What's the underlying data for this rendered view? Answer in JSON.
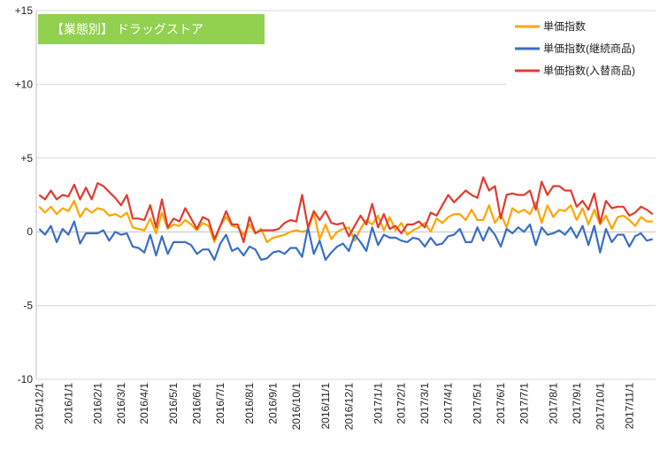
{
  "chart_data": {
    "type": "line",
    "title": "【業態別】 ドラッグストア",
    "title_box_color": "#92d050",
    "ylim": [
      -10,
      15
    ],
    "yticks": [
      {
        "value": 15,
        "label": "+15"
      },
      {
        "value": 10,
        "label": "+10"
      },
      {
        "value": 5,
        "label": "+5"
      },
      {
        "value": 0,
        "label": "0"
      },
      {
        "value": -5,
        "label": "-5"
      },
      {
        "value": -10,
        "label": "-10"
      }
    ],
    "grid": "horizontal",
    "legend_position": "top-right",
    "x_ticks": [
      {
        "index": 0,
        "label": "2015/12/1"
      },
      {
        "index": 5,
        "label": "2016/1/1"
      },
      {
        "index": 10,
        "label": "2016/2/1"
      },
      {
        "index": 14,
        "label": "2016/3/1"
      },
      {
        "index": 18,
        "label": "2016/4/1"
      },
      {
        "index": 23,
        "label": "2016/5/1"
      },
      {
        "index": 27,
        "label": "2016/6/1"
      },
      {
        "index": 31,
        "label": "2016/7/1"
      },
      {
        "index": 36,
        "label": "2016/8/1"
      },
      {
        "index": 40,
        "label": "2016/9/1"
      },
      {
        "index": 44,
        "label": "2016/10/1"
      },
      {
        "index": 49,
        "label": "2016/11/1"
      },
      {
        "index": 53,
        "label": "2016/12/1"
      },
      {
        "index": 58,
        "label": "2017/1/1"
      },
      {
        "index": 62,
        "label": "2017/2/1"
      },
      {
        "index": 66,
        "label": "2017/3/1"
      },
      {
        "index": 70,
        "label": "2017/4/1"
      },
      {
        "index": 75,
        "label": "2017/5/1"
      },
      {
        "index": 79,
        "label": "2017/6/1"
      },
      {
        "index": 83,
        "label": "2017/7/1"
      },
      {
        "index": 88,
        "label": "2017/8/1"
      },
      {
        "index": 92,
        "label": "2017/9/1"
      },
      {
        "index": 96,
        "label": "2017/10/1"
      },
      {
        "index": 101,
        "label": "2017/11/1"
      }
    ],
    "series": [
      {
        "name": "単価指数",
        "color": "#ffa500",
        "values": [
          1.7,
          1.3,
          1.7,
          1.2,
          1.6,
          1.4,
          2.1,
          1.0,
          1.6,
          1.3,
          1.6,
          1.5,
          1.1,
          1.2,
          1.0,
          1.3,
          0.3,
          0.2,
          0.1,
          0.9,
          -0.1,
          1.3,
          0.2,
          0.5,
          0.4,
          0.8,
          0.5,
          0.1,
          0.6,
          0.4,
          -0.7,
          0.4,
          1.0,
          0.4,
          0.3,
          -0.2,
          0.5,
          -0.1,
          0.2,
          -0.7,
          -0.4,
          -0.3,
          -0.2,
          0.0,
          0.1,
          0.0,
          0.1,
          1.3,
          -0.5,
          0.5,
          -0.5,
          0.0,
          0.2,
          0.3,
          -0.6,
          0.2,
          0.8,
          0.5,
          1.1,
          0.1,
          1.0,
          0.1,
          0.6,
          -0.2,
          0.1,
          0.3,
          0.6,
          0.0,
          0.9,
          0.6,
          1.0,
          1.2,
          1.2,
          0.8,
          1.5,
          0.8,
          0.8,
          1.8,
          0.6,
          1.2,
          0.3,
          1.6,
          1.3,
          1.5,
          1.2,
          2.0,
          0.6,
          1.8,
          1.0,
          1.5,
          1.4,
          1.8,
          0.8,
          1.6,
          0.5,
          1.5,
          0.5,
          1.1,
          0.2,
          1.0,
          1.1,
          0.8,
          0.4,
          1.0,
          0.7,
          0.7
        ]
      },
      {
        "name": "単価指数(継続商品)",
        "color": "#3a6fc4",
        "values": [
          0.2,
          -0.2,
          0.4,
          -0.7,
          0.2,
          -0.2,
          0.7,
          -0.8,
          -0.1,
          -0.1,
          -0.1,
          0.1,
          -0.6,
          0.0,
          -0.2,
          -0.1,
          -1.0,
          -1.1,
          -1.4,
          -0.2,
          -1.6,
          -0.3,
          -1.5,
          -0.7,
          -0.7,
          -0.7,
          -0.9,
          -1.5,
          -1.2,
          -1.2,
          -1.9,
          -0.8,
          -0.2,
          -1.3,
          -1.1,
          -1.6,
          -1.0,
          -1.2,
          -1.9,
          -1.8,
          -1.4,
          -1.3,
          -1.5,
          -1.1,
          -1.1,
          -1.7,
          0.3,
          -1.5,
          -0.6,
          -1.9,
          -1.4,
          -1.0,
          -0.8,
          -1.3,
          -0.2,
          -0.7,
          -1.3,
          0.3,
          -0.9,
          -0.2,
          -0.4,
          -0.4,
          -0.6,
          -0.7,
          -0.4,
          -0.5,
          -1.0,
          -0.4,
          -0.9,
          -0.8,
          -0.3,
          -0.2,
          0.2,
          -0.7,
          -0.7,
          0.3,
          -0.6,
          0.3,
          -0.2,
          -1.0,
          0.2,
          -0.1,
          0.3,
          0.0,
          0.5,
          -0.9,
          0.3,
          -0.2,
          -0.1,
          0.1,
          -0.2,
          0.3,
          -0.4,
          0.4,
          -0.9,
          0.4,
          -1.4,
          0.2,
          -0.7,
          -0.2,
          -0.2,
          -1.0,
          -0.3,
          -0.1,
          -0.6,
          -0.5
        ]
      },
      {
        "name": "単価指数(入替商品)",
        "color": "#e03c31",
        "values": [
          2.5,
          2.2,
          2.8,
          2.2,
          2.5,
          2.4,
          3.2,
          2.2,
          3.0,
          2.2,
          3.3,
          3.1,
          2.7,
          2.3,
          1.8,
          2.5,
          0.9,
          0.9,
          0.8,
          1.8,
          0.3,
          2.2,
          0.3,
          0.9,
          0.7,
          1.6,
          0.9,
          0.2,
          1.0,
          0.8,
          -0.5,
          0.4,
          1.4,
          0.5,
          0.5,
          -0.7,
          1.0,
          -0.1,
          0.1,
          0.1,
          0.1,
          0.2,
          0.6,
          0.8,
          0.7,
          2.5,
          0.3,
          1.4,
          0.8,
          1.4,
          0.6,
          0.5,
          0.6,
          -0.3,
          0.4,
          1.1,
          0.5,
          1.9,
          0.3,
          1.2,
          0.2,
          0.4,
          -0.1,
          0.5,
          0.5,
          0.7,
          0.3,
          1.3,
          1.1,
          1.8,
          2.5,
          2.0,
          2.4,
          2.8,
          2.5,
          2.3,
          3.7,
          2.8,
          3.1,
          0.9,
          2.5,
          2.6,
          2.5,
          2.5,
          2.8,
          1.5,
          3.4,
          2.5,
          3.1,
          3.1,
          2.8,
          2.8,
          1.7,
          2.1,
          1.5,
          2.6,
          0.6,
          2.1,
          1.6,
          1.7,
          1.7,
          1.1,
          1.3,
          1.7,
          1.5,
          1.2
        ]
      }
    ]
  }
}
